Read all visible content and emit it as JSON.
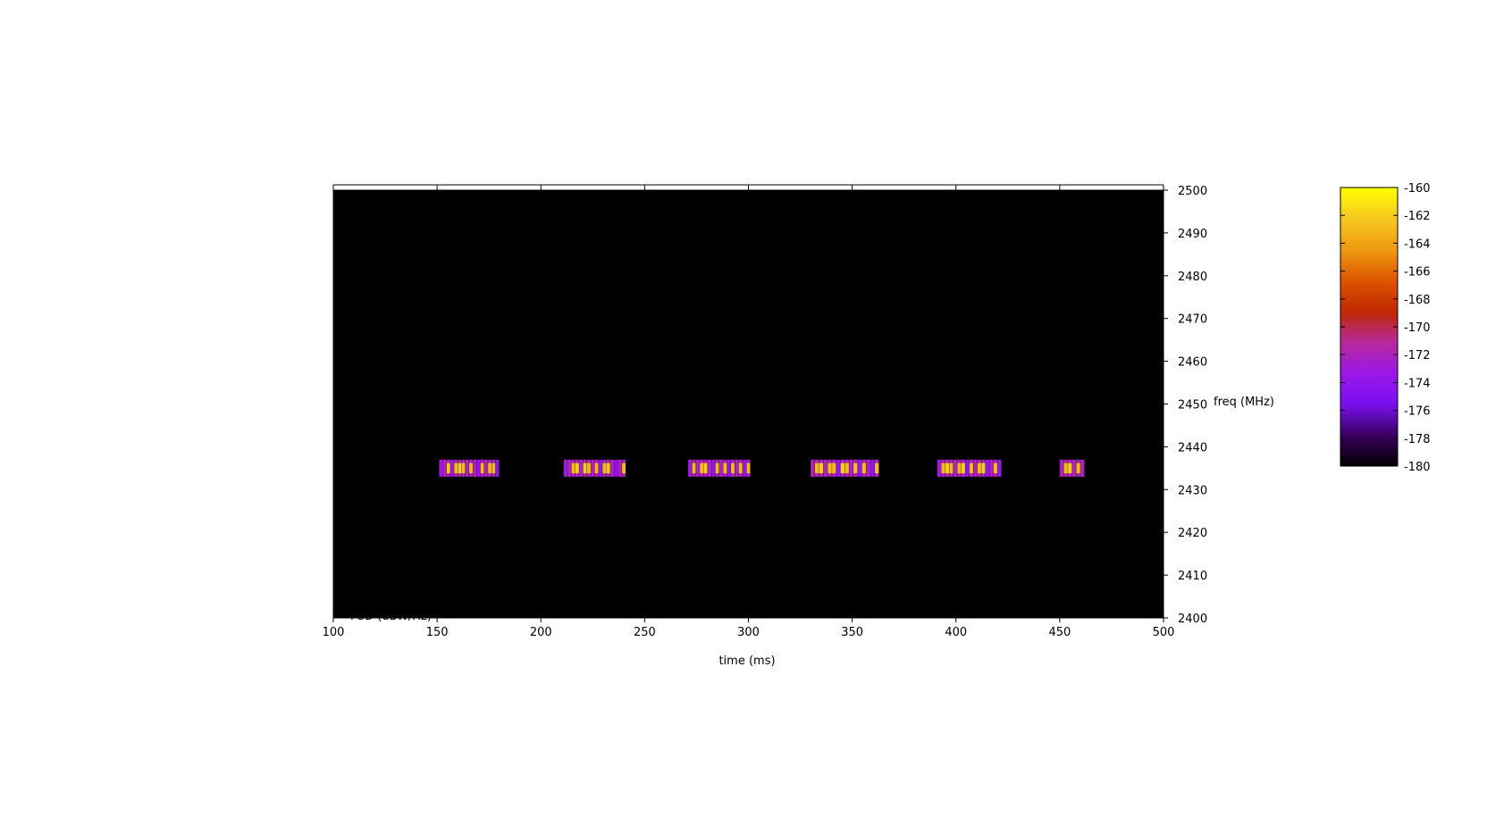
{
  "chart_data": {
    "type": "heatmap",
    "title": "",
    "xlabel": "time (ms)",
    "ylabel": "freq (MHz)",
    "colorbar_label": "PSD (dBW/Hz)",
    "xlim": [
      100,
      500
    ],
    "ylim": [
      2400,
      2500
    ],
    "zlim": [
      -180,
      -160
    ],
    "xticks": [
      "100",
      "150",
      "200",
      "250",
      "300",
      "350",
      "400",
      "450",
      "500"
    ],
    "yticks": [
      "2400",
      "2410",
      "2420",
      "2430",
      "2440",
      "2450",
      "2460",
      "2470",
      "2480",
      "2490",
      "2500"
    ],
    "cbticks": [
      "-180",
      "-178",
      "-176",
      "-174",
      "-172",
      "-170",
      "-168",
      "-166",
      "-164",
      "-162",
      "-160"
    ],
    "palette": [
      "#000000",
      "#3a0060",
      "#7a10f0",
      "#9a18e8",
      "#b82a9a",
      "#c02800",
      "#dd5500",
      "#ee9a10",
      "#f6c820",
      "#ffff00"
    ],
    "background_level": -180,
    "signal_band": {
      "freq_center": 2435,
      "freq_halfwidth": 2
    },
    "bursts": [
      {
        "start": 151,
        "end": 180,
        "levels": [
          -173,
          -172,
          -162,
          -173,
          -163,
          -162,
          -163,
          -172,
          -163,
          -172,
          -174,
          -163,
          -172,
          -163,
          -163,
          -174
        ]
      },
      {
        "start": 211,
        "end": 241,
        "levels": [
          -173,
          -172,
          -163,
          -162,
          -172,
          -162,
          -163,
          -172,
          -163,
          -174,
          -163,
          -162,
          -172,
          -174,
          -172,
          -163
        ]
      },
      {
        "start": 271,
        "end": 301,
        "levels": [
          -173,
          -163,
          -172,
          -163,
          -162,
          -172,
          -174,
          -163,
          -172,
          -163,
          -174,
          -163,
          -172,
          -163,
          -174,
          -163
        ]
      },
      {
        "start": 330,
        "end": 363,
        "levels": [
          -172,
          -163,
          -162,
          -172,
          -163,
          -163,
          -174,
          -162,
          -163,
          -172,
          -163,
          -174,
          -163,
          -172,
          -174,
          -163
        ]
      },
      {
        "start": 391,
        "end": 422,
        "levels": [
          -173,
          -163,
          -162,
          -163,
          -172,
          -163,
          -162,
          -174,
          -163,
          -172,
          -163,
          -162,
          -174,
          -172,
          -163,
          -173
        ]
      },
      {
        "start": 450,
        "end": 462,
        "levels": [
          -172,
          -163,
          -162,
          -172,
          -163,
          -172
        ]
      }
    ]
  }
}
